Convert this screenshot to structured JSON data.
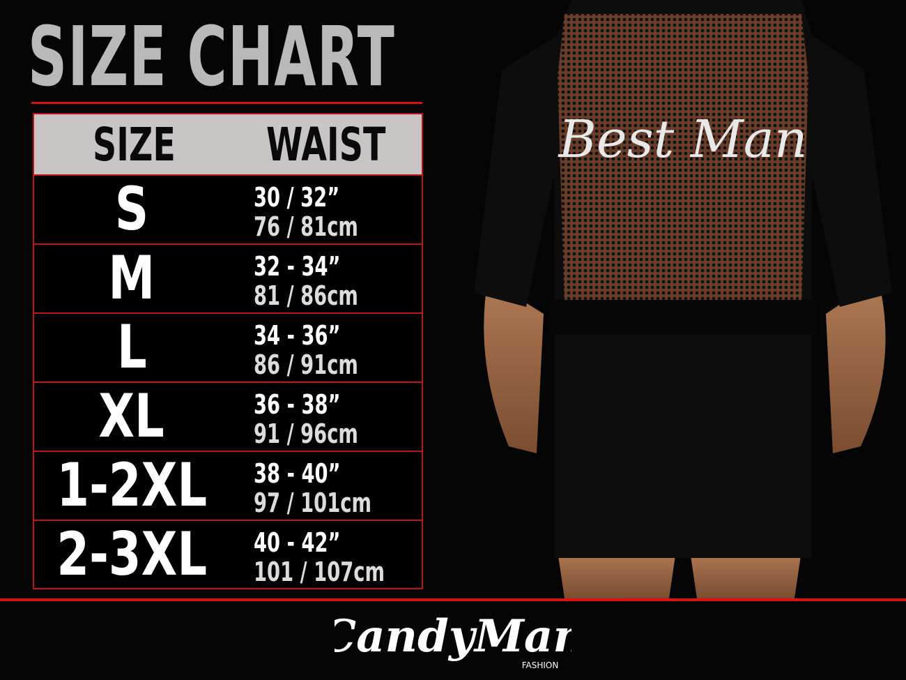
{
  "title": "SIZE CHART",
  "table": {
    "headers": [
      "SIZE",
      "WAIST"
    ],
    "rows": [
      {
        "size": "S",
        "inches": "30 / 32”",
        "cm": "76 / 81cm"
      },
      {
        "size": "M",
        "inches": "32 - 34”",
        "cm": "81 / 86cm"
      },
      {
        "size": "L",
        "inches": "34 - 36”",
        "cm": "86 / 91cm"
      },
      {
        "size": "XL",
        "inches": "36 - 38”",
        "cm": "91 / 96cm"
      },
      {
        "size": "1-2XL",
        "inches": "38 - 40”",
        "cm": "97 / 101cm"
      },
      {
        "size": "2-3XL",
        "inches": "40 - 42”",
        "cm": "101 / 107cm"
      }
    ]
  },
  "product": {
    "print_text": "Best Man"
  },
  "brand": {
    "name": "CandyMan",
    "sub": "FASHION"
  },
  "colors": {
    "accent": "#d11111",
    "header_bg": "#c9c5c5",
    "title": "#b9b9b9",
    "background": "#050505"
  }
}
